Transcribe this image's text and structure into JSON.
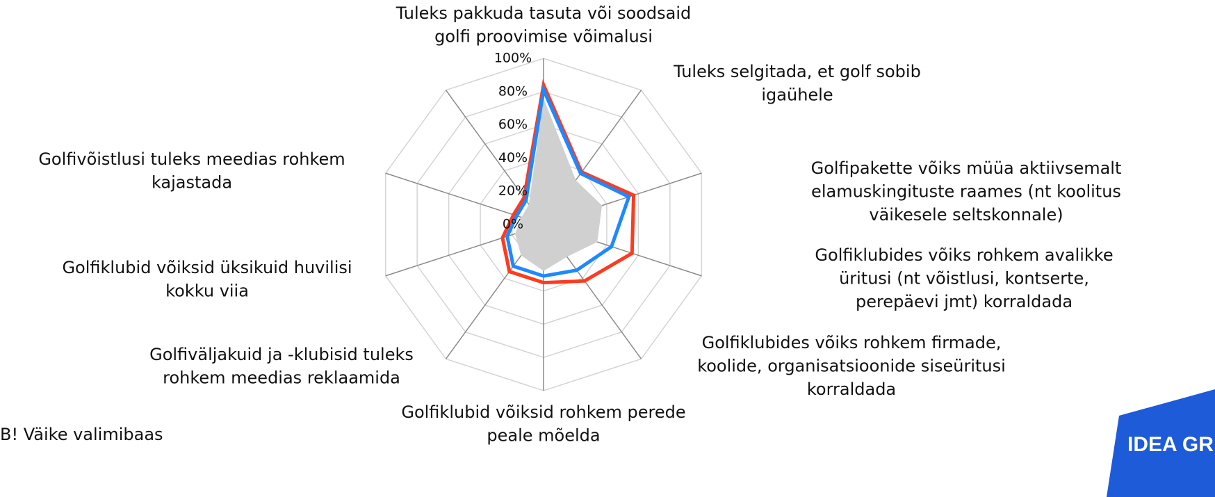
{
  "chart_data": {
    "type": "radar",
    "categories": [
      [
        "Tuleks pakkuda tasuta või soodsaid",
        "golfi proovimise võimalusi"
      ],
      [
        "Tuleks selgitada, et golf sobib",
        "igaühele"
      ],
      [
        "Golfipakette võiks müüa aktiivsemalt",
        "elamuskingituste raames (nt koolitus",
        "väikesele seltskonnale)"
      ],
      [
        "Golfiklubides võiks rohkem avalikke",
        "üritusi (nt võistlusi, kontserte,",
        "perepäevi jmt) korraldada"
      ],
      [
        "Golfiklubides võiks rohkem firmade,",
        "koolide, organisatsioonide siseüritusi",
        "korraldada"
      ],
      [
        "Golfiklubid võiksid rohkem perede",
        "peale mõelda"
      ],
      [
        "Golfiväljakuid ja -klubisid tuleks",
        "rohkem meedias reklaamida"
      ],
      [
        "Golfiklubid võiksid üksikuid huvilisi",
        "kokku viia"
      ],
      [
        "Golfivõistlusi tuleks meedias rohkem",
        "kajastada"
      ],
      null
    ],
    "series": [
      {
        "color": "#d0d0d0",
        "fill": true,
        "values": [
          76,
          33,
          37,
          34,
          24,
          28,
          23,
          18,
          14,
          15
        ]
      },
      {
        "color": "#ff3b1f",
        "values": [
          84,
          39,
          57,
          56,
          42,
          35,
          35,
          26,
          19,
          20
        ]
      },
      {
        "color": "#1e88ff",
        "values": [
          81,
          38,
          54,
          43,
          34,
          31,
          31,
          23,
          17,
          18
        ]
      }
    ],
    "rlim": [
      0,
      100
    ],
    "rticks": [
      {
        "value": 0,
        "label": "0%"
      },
      {
        "value": 20,
        "label": "20%"
      },
      {
        "value": 40,
        "label": "40%"
      },
      {
        "value": 60,
        "label": "60%"
      },
      {
        "value": 80,
        "label": "80%"
      },
      {
        "value": 100,
        "label": "100%"
      }
    ],
    "grid": true
  },
  "note": "B! Väike valimibaas",
  "logo": "IDEA GR"
}
